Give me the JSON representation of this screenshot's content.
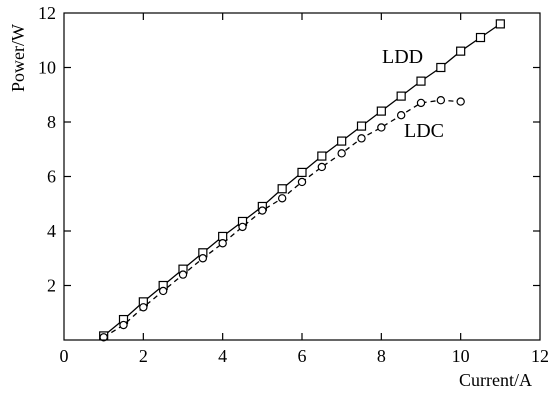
{
  "chart_data": {
    "type": "line",
    "title": "",
    "xlabel": "Current/A",
    "ylabel": "Power/W",
    "xlim": [
      0,
      12
    ],
    "ylim": [
      0,
      12
    ],
    "xticks": [
      0,
      2,
      4,
      6,
      8,
      10,
      12
    ],
    "yticks": [
      2,
      4,
      6,
      8,
      10,
      12
    ],
    "grid": false,
    "legend": "inline labels",
    "series": [
      {
        "name": "LDD",
        "marker": "square",
        "line_style": "solid",
        "color": "#000000",
        "x": [
          1.0,
          1.5,
          2.0,
          2.5,
          3.0,
          3.5,
          4.0,
          4.5,
          5.0,
          5.5,
          6.0,
          6.5,
          7.0,
          7.5,
          8.0,
          8.5,
          9.0,
          9.5,
          10.0,
          10.5,
          11.0
        ],
        "y": [
          0.15,
          0.75,
          1.4,
          2.0,
          2.6,
          3.2,
          3.8,
          4.35,
          4.9,
          5.55,
          6.15,
          6.75,
          7.3,
          7.85,
          8.4,
          8.95,
          9.5,
          10.0,
          10.6,
          11.1,
          11.6
        ]
      },
      {
        "name": "LDC",
        "marker": "circle",
        "line_style": "dashed",
        "color": "#000000",
        "x": [
          1.0,
          1.5,
          2.0,
          2.5,
          3.0,
          3.5,
          4.0,
          4.5,
          5.0,
          5.5,
          6.0,
          6.5,
          7.0,
          7.5,
          8.0,
          8.5,
          9.0,
          9.5,
          10.0
        ],
        "y": [
          0.1,
          0.55,
          1.2,
          1.8,
          2.4,
          3.0,
          3.55,
          4.15,
          4.75,
          5.2,
          5.8,
          6.35,
          6.85,
          7.4,
          7.8,
          8.25,
          8.7,
          8.8,
          8.75
        ]
      }
    ]
  }
}
